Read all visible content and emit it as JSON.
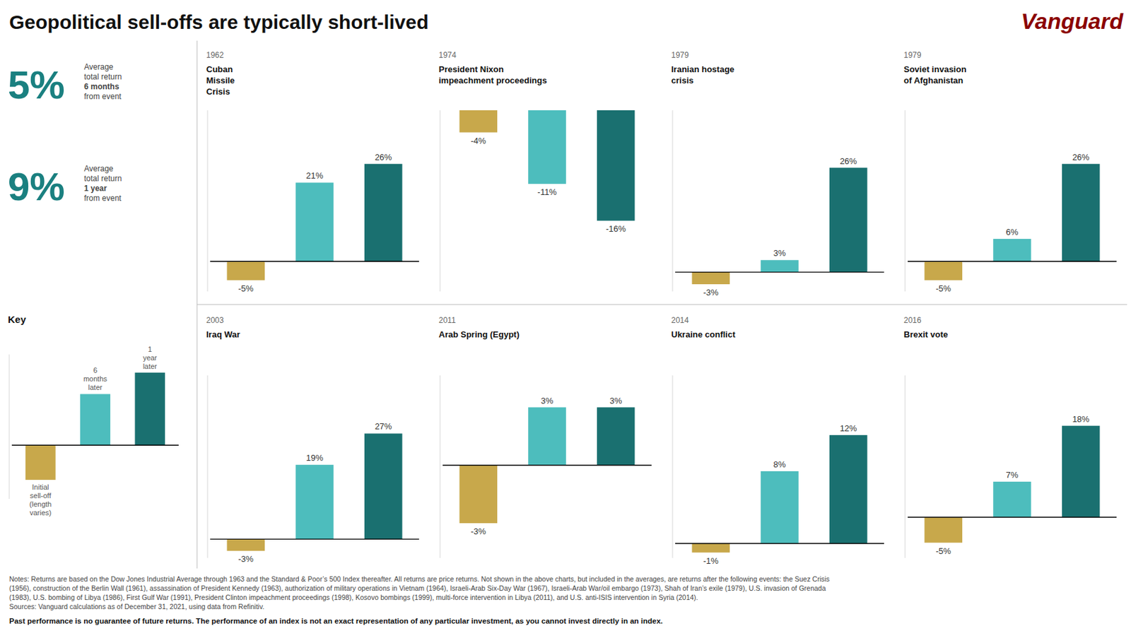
{
  "title": "Geopolitical sell-offs are typically short-lived",
  "logo": "Vanguard",
  "annotations": [
    {
      "value": 5,
      "label": "5%",
      "lines": [
        "Average",
        "total return",
        "6 months",
        "from event"
      ]
    },
    {
      "value": 9,
      "label": "9%",
      "lines": [
        "Average",
        "total return",
        "1 year",
        "from event"
      ]
    }
  ],
  "notes": [
    "Notes: Returns are based on the Dow Jones Industrial Average through 1963 and the Standard & Poor’s 500 Index thereafter. All returns are price returns. Not shown in the above charts, but included in the averages, are returns after the following events: the Suez Crisis",
    "(1956), construction of the Berlin Wall (1961), assassination of President Kennedy (1963), authorization of military operations in Vietnam (1964), Israeli-Arab Six-Day War (1967), Israeli-Arab War/oil embargo (1973), Shah of Iran’s exile (1979), U.S. invasion of Grenada",
    "(1983), U.S. bombing of Libya (1986), First Gulf War (1991), President Clinton impeachment proceedings (1998), Kosovo bombings (1999), multi-force intervention in Libya (2011), and U.S. anti-ISIS intervention in Syria (2014).",
    "Sources: Vanguard calculations as of December 31, 2021, using data from Refinitiv."
  ],
  "disclaimer": "Past performance is no guarantee of future returns. The performance of an index is not an exact representation of any particular investment, as you cannot invest directly in an index.",
  "chart_data": [
    {
      "type": "bar",
      "title": "Key",
      "categories": [
        "Initial\nsell-off\n(length\nvaries)",
        "6\nmonths\nlater",
        "1\nyear\nlater"
      ],
      "values": [
        -0.42,
        0.62,
        0.88
      ],
      "colors": [
        "#C8A84B",
        "#4DBDBD",
        "#1A7070"
      ],
      "ylim": [
        -0.65,
        1.1
      ],
      "tick_labels": false
    },
    {
      "type": "bar",
      "subtitle": "1962",
      "title": "Cuban\nMissile\nCrisis",
      "categories": [
        null,
        null,
        null
      ],
      "values": [
        -5,
        21,
        26
      ],
      "value_labels": [
        "-5%",
        "21%",
        "26%"
      ],
      "colors": [
        "#C8A84B",
        "#4DBDBD",
        "#1A7070"
      ],
      "ylim": [
        -8,
        40.3
      ],
      "data_labels": true,
      "tick_labels": false
    },
    {
      "type": "bar",
      "subtitle": "1974",
      "title": "President Nixon\nimpeachment proceedings",
      "categories": [
        null,
        null,
        null
      ],
      "values": [
        -4,
        -11,
        -16
      ],
      "value_labels": [
        "-4%",
        "-11%",
        "-16%"
      ],
      "colors": [
        "#C8A84B",
        "#4DBDBD",
        "#1A7070"
      ],
      "ylim": [
        -25.6,
        -1
      ],
      "data_labels": true,
      "tick_labels": false
    },
    {
      "type": "bar",
      "subtitle": "1979",
      "title": "Iranian hostage\ncrisis",
      "categories": [
        null,
        null,
        null
      ],
      "values": [
        -3,
        3,
        26
      ],
      "value_labels": [
        "-3%",
        "3%",
        "26%"
      ],
      "colors": [
        "#C8A84B",
        "#4DBDBD",
        "#1A7070"
      ],
      "ylim": [
        -4.8,
        40.3
      ],
      "data_labels": true,
      "tick_labels": false
    },
    {
      "type": "bar",
      "subtitle": "1979",
      "title": "Soviet invasion\nof Afghanistan",
      "categories": [
        null,
        null,
        null
      ],
      "values": [
        -5,
        6,
        26
      ],
      "value_labels": [
        "-5%",
        "6%",
        "26%"
      ],
      "colors": [
        "#C8A84B",
        "#4DBDBD",
        "#1A7070"
      ],
      "ylim": [
        -8,
        40.3
      ],
      "data_labels": true,
      "tick_labels": false
    },
    {
      "type": "bar",
      "subtitle": "2003",
      "title": "Iraq War",
      "categories": [
        null,
        null,
        null
      ],
      "values": [
        -3,
        19,
        27
      ],
      "value_labels": [
        "-3%",
        "19%",
        "27%"
      ],
      "colors": [
        "#C8A84B",
        "#4DBDBD",
        "#1A7070"
      ],
      "ylim": [
        -4.8,
        41.85
      ],
      "data_labels": true,
      "tick_labels": false
    },
    {
      "type": "bar",
      "subtitle": "2011",
      "title": "Arab Spring (Egypt)",
      "categories": [
        null,
        null,
        null
      ],
      "values": [
        -3,
        3,
        3
      ],
      "value_labels": [
        "-3%",
        "3%",
        "3%"
      ],
      "colors": [
        "#C8A84B",
        "#4DBDBD",
        "#1A7070"
      ],
      "ylim": [
        -4.8,
        4.65
      ],
      "data_labels": true,
      "tick_labels": false
    },
    {
      "type": "bar",
      "subtitle": "2014",
      "title": "Ukraine conflict",
      "categories": [
        null,
        null,
        null
      ],
      "values": [
        -1,
        8,
        12
      ],
      "value_labels": [
        "-1%",
        "8%",
        "12%"
      ],
      "colors": [
        "#C8A84B",
        "#4DBDBD",
        "#1A7070"
      ],
      "ylim": [
        -1.6,
        18.6
      ],
      "data_labels": true,
      "tick_labels": false
    },
    {
      "type": "bar",
      "subtitle": "2016",
      "title": "Brexit vote",
      "categories": [
        null,
        null,
        null
      ],
      "values": [
        -5,
        7,
        18
      ],
      "value_labels": [
        "-5%",
        "7%",
        "18%"
      ],
      "colors": [
        "#C8A84B",
        "#4DBDBD",
        "#1A7070"
      ],
      "ylim": [
        -8,
        27.9
      ],
      "data_labels": true,
      "tick_labels": false
    }
  ]
}
